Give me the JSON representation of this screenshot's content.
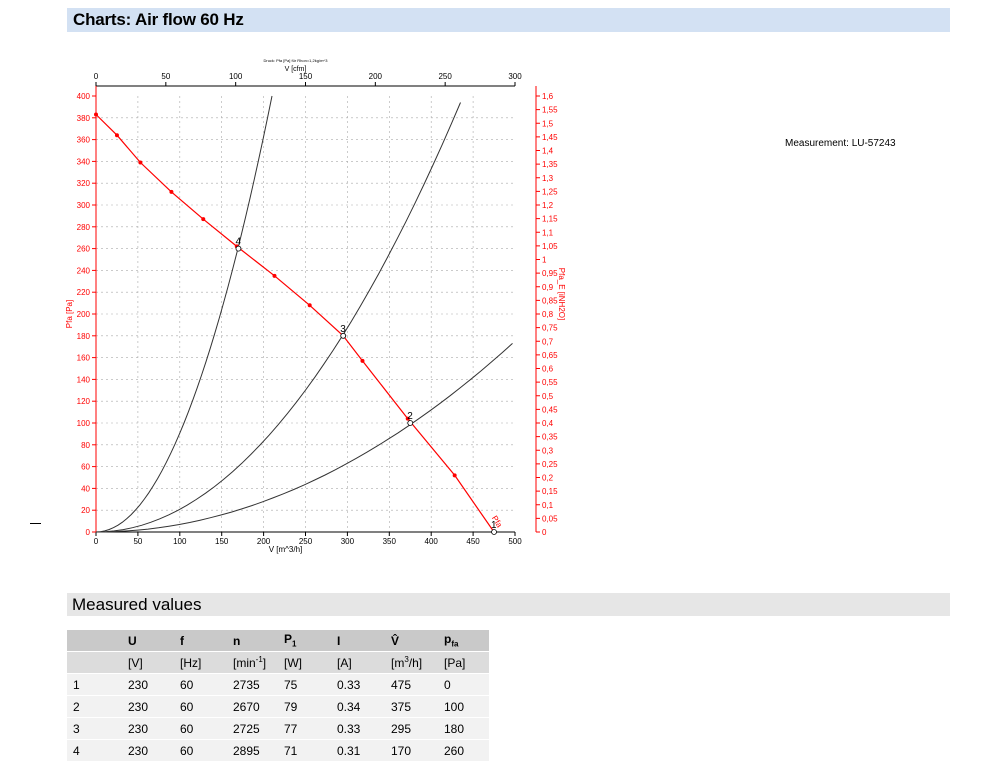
{
  "page": {
    "title": "Charts: Air flow 60 Hz",
    "measurement": "Measurement: LU-57243",
    "measured_heading": "Measured values"
  },
  "colors": {
    "red": "#ff0000",
    "curve": "#333333",
    "grid": "#aaaaaa",
    "title_bar": "#d3e1f3"
  },
  "chart_data": {
    "type": "line",
    "title": "Druck: Pfa [Pa] für Rhon=1,2kg/m^3",
    "xlabel": "V [m^3/h]",
    "x2label": "V [cfm]",
    "ylabel": "Pfa [Pa]",
    "y2label": "Pfa_E [iNH2O]",
    "xlim": [
      0,
      500
    ],
    "x2lim": [
      0,
      300
    ],
    "ylim": [
      0,
      400
    ],
    "y2lim": [
      0,
      1.6
    ],
    "x_ticks": [
      "0",
      "50",
      "100",
      "150",
      "200",
      "250",
      "300",
      "350",
      "400",
      "450",
      "500"
    ],
    "x2_ticks": [
      "0",
      "50",
      "100",
      "150",
      "200",
      "250",
      "300"
    ],
    "y_ticks": [
      "0",
      "20",
      "40",
      "60",
      "80",
      "100",
      "120",
      "140",
      "160",
      "180",
      "200",
      "220",
      "240",
      "260",
      "280",
      "300",
      "320",
      "340",
      "360",
      "380",
      "400"
    ],
    "y2_ticks": [
      "0",
      "0,05",
      "0,1",
      "0,15",
      "0,2",
      "0,25",
      "0,3",
      "0,35",
      "0,4",
      "0,45",
      "0,5",
      "0,55",
      "0,6",
      "0,65",
      "0,7",
      "0,75",
      "0,8",
      "0,85",
      "0,9",
      "0,95",
      "1",
      "1,05",
      "1,1",
      "1,15",
      "1,2",
      "1,25",
      "1,3",
      "1,35",
      "1,4",
      "1,45",
      "1,5",
      "1,55",
      "1,6"
    ],
    "grid": true,
    "series": [
      {
        "name": "Pfa",
        "color": "#ff0000",
        "x": [
          0,
          25,
          53,
          90,
          128,
          168,
          213,
          255,
          295,
          318,
          372,
          428,
          475
        ],
        "y": [
          383,
          364,
          339,
          312,
          287,
          262,
          235,
          208,
          180,
          157,
          104,
          52,
          0
        ]
      }
    ],
    "system_curves": [
      {
        "x_end": 210,
        "y_end": 400
      },
      {
        "x_end": 435,
        "y_end": 394
      },
      {
        "x_end": 497,
        "y_end": 173
      }
    ],
    "points": [
      {
        "label": "1",
        "x": 475,
        "y": 0
      },
      {
        "label": "2",
        "x": 375,
        "y": 100
      },
      {
        "label": "3",
        "x": 295,
        "y": 180
      },
      {
        "label": "4",
        "x": 170,
        "y": 260
      }
    ]
  },
  "table": {
    "headers": [
      "",
      "U",
      "f",
      "n",
      "P1",
      "I",
      "V̂",
      "pfa"
    ],
    "units": [
      "",
      "[V]",
      "[Hz]",
      "[min-1]",
      "[W]",
      "[A]",
      "[m3/h]",
      "[Pa]"
    ],
    "rows": [
      [
        "1",
        "230",
        "60",
        "2735",
        "75",
        "0.33",
        "475",
        "0"
      ],
      [
        "2",
        "230",
        "60",
        "2670",
        "79",
        "0.34",
        "375",
        "100"
      ],
      [
        "3",
        "230",
        "60",
        "2725",
        "77",
        "0.33",
        "295",
        "180"
      ],
      [
        "4",
        "230",
        "60",
        "2895",
        "71",
        "0.31",
        "170",
        "260"
      ]
    ]
  }
}
